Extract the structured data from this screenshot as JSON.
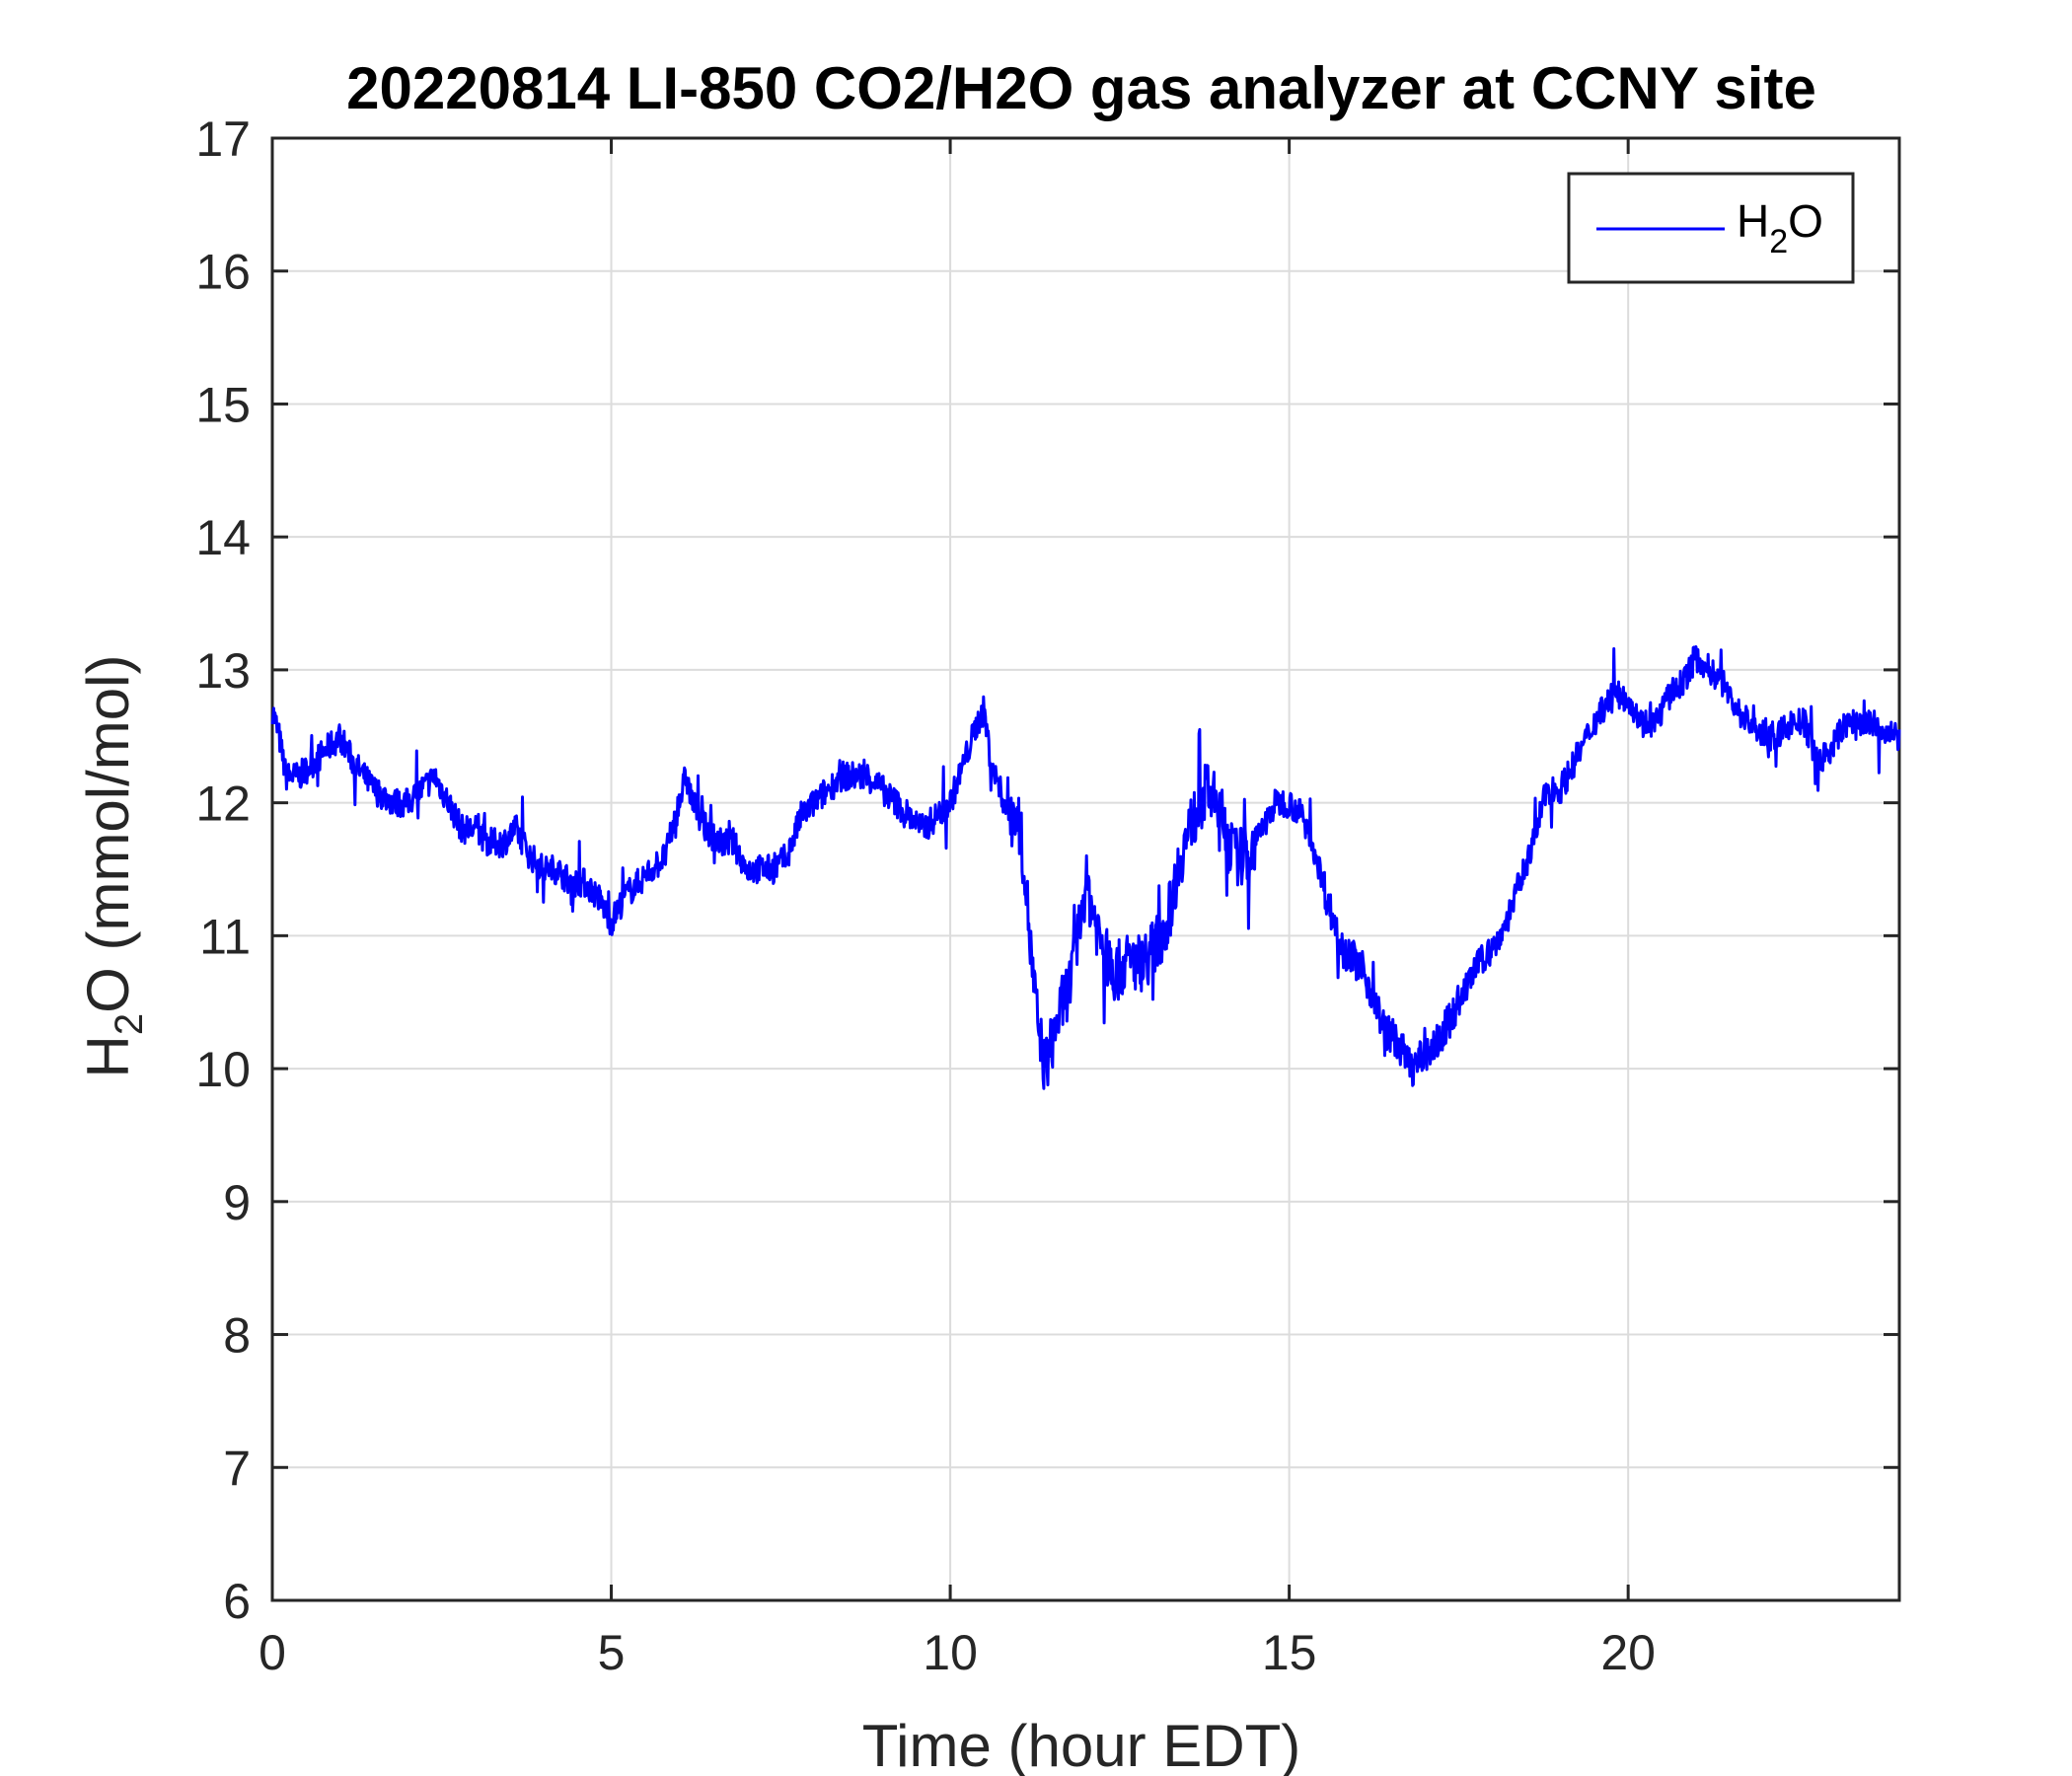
{
  "chart_data": {
    "type": "line",
    "title": "20220814 LI-850 CO2/H2O gas analyzer at CCNY site",
    "xlabel": "Time (hour EDT)",
    "ylabel": {
      "main": "H",
      "sub": "2",
      "rest": "O (mmol/mol)"
    },
    "xlim": [
      0,
      24
    ],
    "ylim": [
      6,
      17
    ],
    "xticks": [
      0,
      5,
      10,
      15,
      20
    ],
    "yticks": [
      6,
      7,
      8,
      9,
      10,
      11,
      12,
      13,
      14,
      15,
      16,
      17
    ],
    "grid": true,
    "legend_position": "top-right",
    "series": [
      {
        "name": {
          "main": "H",
          "sub": "2",
          "rest": "O"
        },
        "color": "#0000ff",
        "x": [
          0,
          0.1,
          0.2,
          0.4,
          0.6,
          0.8,
          1.0,
          1.2,
          1.5,
          1.8,
          2.0,
          2.2,
          2.4,
          2.6,
          2.8,
          3.0,
          3.2,
          3.4,
          3.6,
          3.8,
          4.0,
          4.2,
          4.4,
          4.6,
          4.8,
          5.0,
          5.2,
          5.4,
          5.6,
          5.8,
          6.0,
          6.1,
          6.2,
          6.4,
          6.6,
          6.8,
          7.0,
          7.2,
          7.4,
          7.6,
          7.8,
          8.0,
          8.2,
          8.4,
          8.6,
          8.8,
          9.0,
          9.2,
          9.4,
          9.6,
          9.8,
          10.0,
          10.2,
          10.4,
          10.5,
          10.6,
          10.8,
          11.0,
          11.1,
          11.2,
          11.3,
          11.4,
          11.6,
          11.8,
          12.0,
          12.2,
          12.4,
          12.6,
          12.8,
          13.0,
          13.2,
          13.4,
          13.6,
          13.8,
          14.0,
          14.2,
          14.4,
          14.6,
          14.8,
          15.0,
          15.2,
          15.4,
          15.6,
          15.8,
          16.0,
          16.2,
          16.4,
          16.6,
          16.8,
          17.0,
          17.2,
          17.4,
          17.6,
          17.8,
          18.0,
          18.2,
          18.4,
          18.6,
          18.8,
          19.0,
          19.2,
          19.4,
          19.6,
          19.8,
          20.0,
          20.2,
          20.4,
          20.6,
          20.8,
          21.0,
          21.2,
          21.4,
          21.6,
          21.8,
          22.0,
          22.2,
          22.4,
          22.6,
          22.8,
          23.0,
          23.2,
          23.4,
          23.6,
          23.8,
          24.0
        ],
        "y": [
          12.7,
          12.5,
          12.2,
          12.2,
          12.3,
          12.4,
          12.5,
          12.3,
          12.1,
          12.0,
          12.0,
          12.1,
          12.2,
          12.0,
          11.8,
          11.8,
          11.7,
          11.7,
          11.8,
          11.6,
          11.5,
          11.5,
          11.4,
          11.4,
          11.3,
          11.1,
          11.3,
          11.4,
          11.5,
          11.6,
          12.0,
          12.2,
          12.0,
          11.8,
          11.7,
          11.7,
          11.5,
          11.5,
          11.5,
          11.6,
          11.9,
          12.0,
          12.1,
          12.2,
          12.2,
          12.2,
          12.1,
          12.0,
          11.9,
          11.8,
          11.9,
          12.0,
          12.3,
          12.6,
          12.7,
          12.3,
          12.0,
          11.9,
          11.5,
          10.8,
          10.3,
          10.0,
          10.4,
          10.7,
          11.4,
          11.0,
          10.7,
          10.8,
          10.8,
          10.9,
          11.1,
          11.6,
          11.9,
          12.1,
          11.9,
          11.6,
          11.6,
          11.8,
          12.0,
          12.0,
          11.9,
          11.6,
          11.2,
          10.9,
          10.8,
          10.6,
          10.3,
          10.2,
          10.0,
          10.1,
          10.2,
          10.4,
          10.6,
          10.8,
          10.9,
          11.1,
          11.4,
          11.7,
          12.1,
          12.1,
          12.3,
          12.5,
          12.7,
          12.8,
          12.8,
          12.6,
          12.6,
          12.8,
          12.9,
          13.1,
          13.0,
          12.9,
          12.7,
          12.6,
          12.5,
          12.5,
          12.6,
          12.6,
          12.3,
          12.4,
          12.6,
          12.6,
          12.6,
          12.5,
          12.5
        ]
      }
    ]
  }
}
